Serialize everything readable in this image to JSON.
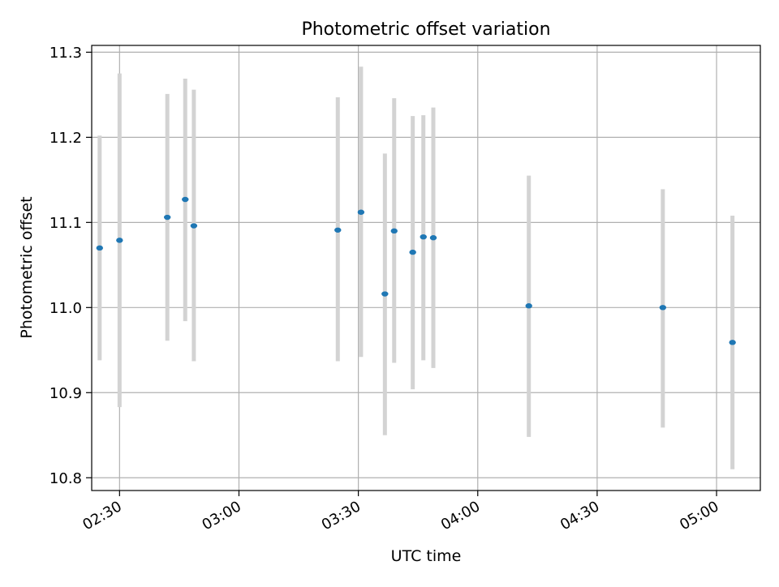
{
  "chart_data": {
    "type": "scatter",
    "title": "Photometric offset variation",
    "xlabel": "UTC time",
    "ylabel": "Photometric offset",
    "x_axis_type": "time",
    "xlim": [
      "02:23",
      "05:11"
    ],
    "ylim": [
      10.785,
      11.308
    ],
    "x_ticks": [
      "02:30",
      "03:00",
      "03:30",
      "04:00",
      "04:30",
      "05:00"
    ],
    "y_ticks": [
      10.8,
      10.9,
      11.0,
      11.1,
      11.2,
      11.3
    ],
    "y_tick_labels": [
      "10.8",
      "10.9",
      "11.0",
      "11.1",
      "11.2",
      "11.3"
    ],
    "grid": true,
    "legend": "none",
    "series": [
      {
        "marker_color": "#1f77b4",
        "errorbar_color": "#d3d3d3",
        "points": [
          {
            "x": "02:25:00",
            "y": 11.07,
            "yerr_low": 10.938,
            "yerr_high": 11.202
          },
          {
            "x": "02:30:00",
            "y": 11.079,
            "yerr_low": 10.883,
            "yerr_high": 11.275
          },
          {
            "x": "02:42:00",
            "y": 11.106,
            "yerr_low": 10.961,
            "yerr_high": 11.251
          },
          {
            "x": "02:46:30",
            "y": 11.127,
            "yerr_low": 10.984,
            "yerr_high": 11.269
          },
          {
            "x": "02:48:40",
            "y": 11.096,
            "yerr_low": 10.937,
            "yerr_high": 11.256
          },
          {
            "x": "03:24:50",
            "y": 11.091,
            "yerr_low": 10.937,
            "yerr_high": 11.247
          },
          {
            "x": "03:30:40",
            "y": 11.112,
            "yerr_low": 10.942,
            "yerr_high": 11.283
          },
          {
            "x": "03:36:40",
            "y": 11.016,
            "yerr_low": 10.85,
            "yerr_high": 11.181
          },
          {
            "x": "03:39:00",
            "y": 11.09,
            "yerr_low": 10.935,
            "yerr_high": 11.246
          },
          {
            "x": "03:43:40",
            "y": 11.065,
            "yerr_low": 10.904,
            "yerr_high": 11.225
          },
          {
            "x": "03:46:20",
            "y": 11.083,
            "yerr_low": 10.938,
            "yerr_high": 11.226
          },
          {
            "x": "03:48:50",
            "y": 11.082,
            "yerr_low": 10.929,
            "yerr_high": 11.235
          },
          {
            "x": "04:12:50",
            "y": 11.002,
            "yerr_low": 10.848,
            "yerr_high": 11.155
          },
          {
            "x": "04:46:30",
            "y": 11.0,
            "yerr_low": 10.859,
            "yerr_high": 11.139
          },
          {
            "x": "05:04:00",
            "y": 10.959,
            "yerr_low": 10.81,
            "yerr_high": 11.108
          }
        ]
      }
    ]
  }
}
